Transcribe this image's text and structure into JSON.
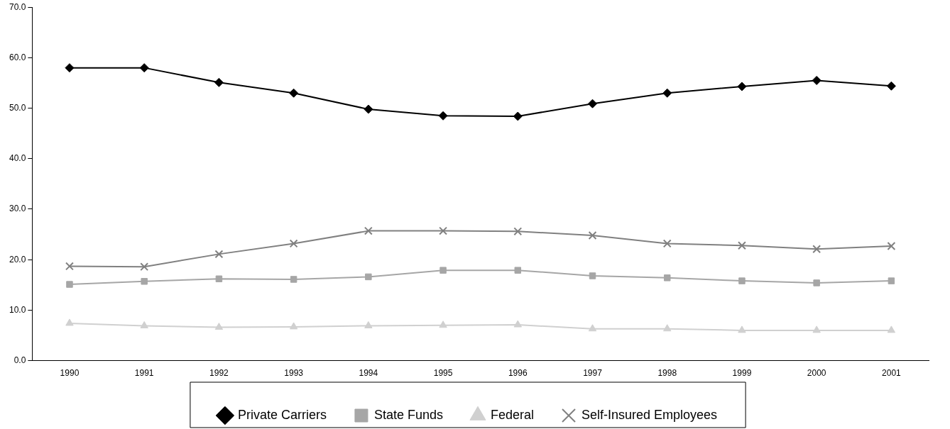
{
  "chart_data": {
    "type": "line",
    "categories": [
      "1990",
      "1991",
      "1992",
      "1993",
      "1994",
      "1995",
      "1996",
      "1997",
      "1998",
      "1999",
      "2000",
      "2001"
    ],
    "series": [
      {
        "name": "Private Carriers",
        "color": "#000000",
        "marker": "diamond",
        "values": [
          58.0,
          58.0,
          55.1,
          53.0,
          49.8,
          48.5,
          48.4,
          50.9,
          53.0,
          54.3,
          55.5,
          54.4
        ]
      },
      {
        "name": "State Funds",
        "color": "#a6a6a6",
        "marker": "square",
        "values": [
          15.1,
          15.7,
          16.2,
          16.1,
          16.6,
          17.9,
          17.9,
          16.8,
          16.4,
          15.8,
          15.4,
          15.8
        ]
      },
      {
        "name": "Federal",
        "color": "#d0d0d0",
        "marker": "triangle",
        "values": [
          7.4,
          6.9,
          6.6,
          6.7,
          6.9,
          7.0,
          7.1,
          6.3,
          6.3,
          6.0,
          6.0,
          6.0
        ]
      },
      {
        "name": "Self-Insured Employees",
        "color": "#808080",
        "marker": "cross",
        "values": [
          18.7,
          18.6,
          21.1,
          23.2,
          25.7,
          25.7,
          25.6,
          24.8,
          23.2,
          22.8,
          22.1,
          22.7
        ]
      }
    ],
    "ylim": [
      0,
      70
    ],
    "yticks": [
      {
        "value": 0,
        "label": "0.0"
      },
      {
        "value": 10,
        "label": "10.0"
      },
      {
        "value": 20,
        "label": "20.0"
      },
      {
        "value": 30,
        "label": "30.0"
      },
      {
        "value": 40,
        "label": "40.0"
      },
      {
        "value": 50,
        "label": "50.0"
      },
      {
        "value": 60,
        "label": "60.0"
      },
      {
        "value": 70,
        "label": "70.0"
      }
    ],
    "grid": false,
    "legend": "bottom",
    "line_style": "solid"
  }
}
